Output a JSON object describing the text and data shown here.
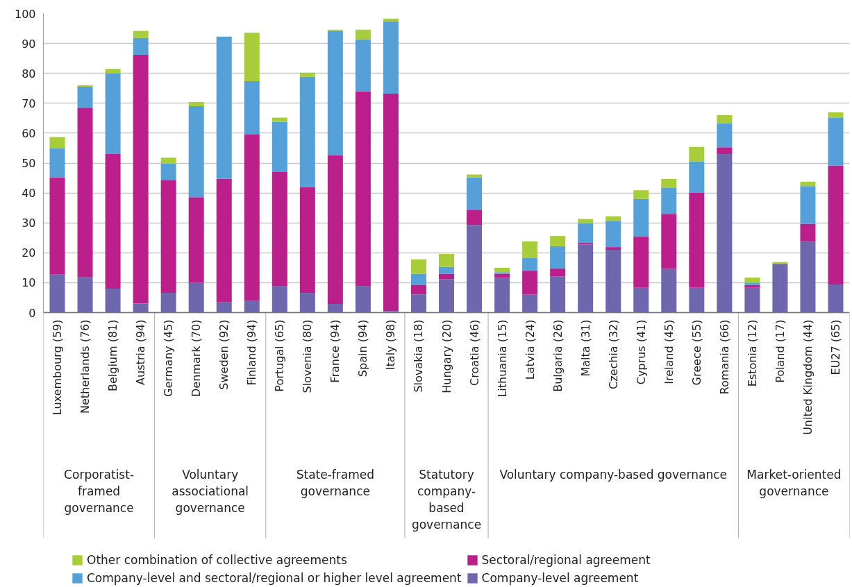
{
  "chart_data": {
    "type": "bar",
    "stacked": true,
    "categories": [
      "Luxembourg (59)",
      "Netherlands (76)",
      "Belgium (81)",
      "Austria (94)",
      "Germany (45)",
      "Denmark (70)",
      "Sweden (92)",
      "Finland (94)",
      "Portugal (65)",
      "Slovenia (80)",
      "France (94)",
      "Spain (94)",
      "Italy (98)",
      "Slovakia (18)",
      "Hungary (20)",
      "Croatia (46)",
      "Lithuania (15)",
      "Latvia (24)",
      "Bulgaria (26)",
      "Malta (31)",
      "Czechia (32)",
      "Cyprus (41)",
      "Ireland (45)",
      "Greece (55)",
      "Romania (66)",
      "Estonia (12)",
      "Poland (17)",
      "United Kingdom (44)",
      "EU27 (65)"
    ],
    "series": [
      {
        "name": "Company-level agreement",
        "color": "#6e67ae",
        "values": [
          12.7,
          11.8,
          8,
          3,
          6.6,
          10,
          3.4,
          3.9,
          8.9,
          6.6,
          2.9,
          8.9,
          0.5,
          6.1,
          11.2,
          29.3,
          11.6,
          6,
          12.1,
          22.8,
          21,
          8.3,
          14.6,
          8.3,
          53,
          8.3,
          16.3,
          23.7,
          9.4
        ]
      },
      {
        "name": "Sectoral/regional agreement",
        "color": "#bb1f8a",
        "values": [
          32.5,
          56.7,
          45,
          83.2,
          37.6,
          28.6,
          41.3,
          55.8,
          38.1,
          35.4,
          49.7,
          65.1,
          72.7,
          3.2,
          1.8,
          5.1,
          1.4,
          8,
          2.7,
          0.5,
          0.9,
          17.2,
          18.4,
          31.7,
          2.3,
          0.9,
          0,
          6,
          39.8
        ]
      },
      {
        "name": "Company-level and sectoral/regional or higher level agreement",
        "color": "#55a0d8",
        "values": [
          9.8,
          7,
          27,
          5.6,
          5.6,
          30.4,
          47.6,
          17.7,
          16.8,
          36.8,
          41.6,
          17.4,
          24.2,
          3.7,
          2.3,
          10.8,
          0.5,
          4.2,
          7.4,
          6.5,
          8.8,
          12.5,
          8.8,
          10.6,
          8,
          0.8,
          0,
          12.6,
          15.9
        ]
      },
      {
        "name": "Other combination of collective agreements",
        "color": "#a8cd3a",
        "values": [
          3.7,
          0.5,
          1.5,
          2.4,
          2,
          1.4,
          0,
          16.2,
          1.4,
          1.4,
          0.4,
          3.2,
          0.9,
          4.8,
          4.3,
          1,
          1.5,
          5.6,
          3.4,
          1.5,
          1.5,
          2.9,
          2.9,
          4.8,
          2.7,
          1.7,
          0.6,
          1.5,
          1.9
        ]
      }
    ],
    "ylim": [
      0,
      100
    ],
    "yticks": [
      0,
      10,
      20,
      30,
      40,
      50,
      60,
      70,
      80,
      90,
      100
    ],
    "grid": "y",
    "legend": "bottom",
    "annotations": [
      "Corporatist-framed governance",
      "Voluntary associational governance",
      "State-framed governance",
      "Statutory company-based governance",
      "Voluntary company-based governance",
      "Market-oriented governance"
    ]
  }
}
